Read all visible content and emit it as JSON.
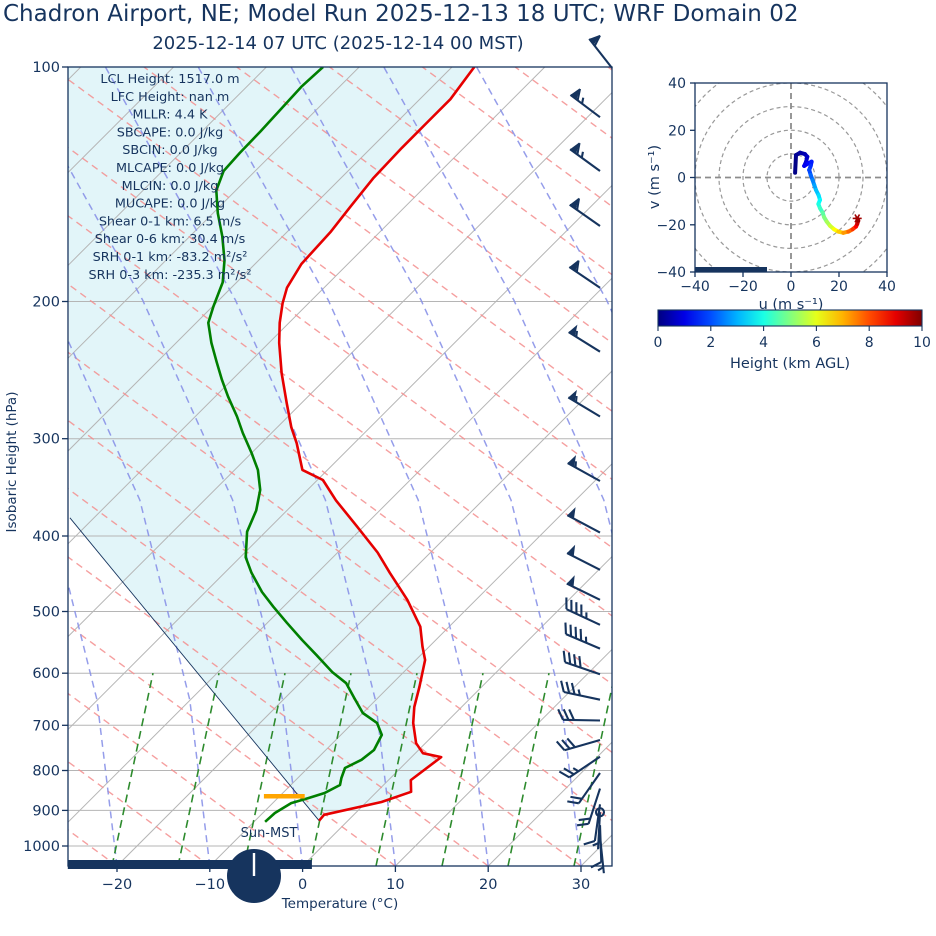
{
  "title": "Chadron Airport, NE; Model Run 2025-12-13 18 UTC; WRF Domain 02",
  "subtitle": "2025-12-14 07 UTC  (2025-12-14 00 MST)",
  "header_barb": {
    "dir": 322,
    "kt": 60
  },
  "colors": {
    "navy": "#16345e",
    "temperature": "#e60000",
    "dewpoint": "#007f00",
    "shade_fill": "#e2f5f9",
    "isotherm": "#b5b5b5",
    "dry_adiabat": "#f48f8f",
    "moist_adiabat": "#8a93e8",
    "mixing_ratio": "#2e8b2e",
    "lcl": "#ffa500",
    "ring_gray": "#999999",
    "marker_red": "#a00000"
  },
  "chart_data": [
    {
      "type": "line",
      "name": "skewt",
      "xlabel": "Temperature (°C)",
      "ylabel": "Isobaric Height (hPa)",
      "x_ticks": [
        -20,
        -10,
        0,
        10,
        20,
        30
      ],
      "p_ticks": [
        100,
        200,
        300,
        400,
        500,
        600,
        700,
        800,
        900,
        1000
      ],
      "xlim": [
        -25.3,
        33.3
      ],
      "plim": [
        100,
        1061
      ],
      "stats_lines": [
        "LCL Height: 1517.0 m",
        "LFC Height: nan m",
        "MLLR: 4.4 K",
        "SBCAPE: 0.0 J/kg",
        "SBCIN: 0.0 J/kg",
        "MLCAPE: 0.0 J/kg",
        "MLCIN: 0.0 J/kg",
        "MUCAPE: 0.0 J/kg",
        "Shear 0-1 km: 6.5 m/s",
        "Shear 0-6 km: 30.4 m/s",
        "SRH 0-1 km: -83.2 m²/s²",
        "SRH 0-3 km: -235.3 m²/s²"
      ],
      "temperature_profile": [
        [
          100,
          -67.6
        ],
        [
          110,
          -66.7
        ],
        [
          118,
          -66.7
        ],
        [
          127,
          -66.7
        ],
        [
          139,
          -66.5
        ],
        [
          151,
          -65.9
        ],
        [
          163,
          -65.3
        ],
        [
          179,
          -65.0
        ],
        [
          192,
          -64.0
        ],
        [
          201,
          -62.8
        ],
        [
          213,
          -61.0
        ],
        [
          226,
          -58.9
        ],
        [
          247,
          -55.4
        ],
        [
          270,
          -51.6
        ],
        [
          290,
          -48.5
        ],
        [
          304,
          -46.2
        ],
        [
          329,
          -42.7
        ],
        [
          339,
          -39.4
        ],
        [
          360,
          -35.8
        ],
        [
          389,
          -30.7
        ],
        [
          420,
          -25.7
        ],
        [
          446,
          -22.2
        ],
        [
          483,
          -17.4
        ],
        [
          523,
          -13.1
        ],
        [
          555,
          -10.7
        ],
        [
          577,
          -9.0
        ],
        [
          625,
          -6.7
        ],
        [
          663,
          -5.1
        ],
        [
          695,
          -3.5
        ],
        [
          738,
          -1.0
        ],
        [
          760,
          0.8
        ],
        [
          769,
          3.2
        ],
        [
          823,
          2.4
        ],
        [
          852,
          3.7
        ],
        [
          878,
          1.6
        ],
        [
          912,
          -3.2
        ],
        [
          928,
          -3.1
        ]
      ],
      "dewpoint_profile": [
        [
          100,
          -83.9
        ],
        [
          106,
          -84.1
        ],
        [
          113,
          -83.9
        ],
        [
          121,
          -83.7
        ],
        [
          129,
          -83.6
        ],
        [
          136,
          -83.4
        ],
        [
          144,
          -82.1
        ],
        [
          154,
          -79.5
        ],
        [
          165,
          -76.5
        ],
        [
          177,
          -73.7
        ],
        [
          189,
          -71.5
        ],
        [
          203,
          -69.9
        ],
        [
          213,
          -68.7
        ],
        [
          226,
          -66.2
        ],
        [
          239,
          -63.6
        ],
        [
          252,
          -61.1
        ],
        [
          265,
          -58.6
        ],
        [
          281,
          -55.5
        ],
        [
          295,
          -53.1
        ],
        [
          313,
          -50.0
        ],
        [
          329,
          -47.5
        ],
        [
          349,
          -45.1
        ],
        [
          371,
          -43.3
        ],
        [
          395,
          -42.0
        ],
        [
          426,
          -39.4
        ],
        [
          446,
          -37.1
        ],
        [
          472,
          -33.9
        ],
        [
          493,
          -31.1
        ],
        [
          517,
          -27.9
        ],
        [
          544,
          -24.4
        ],
        [
          569,
          -21.2
        ],
        [
          598,
          -17.7
        ],
        [
          618,
          -15.0
        ],
        [
          646,
          -12.5
        ],
        [
          675,
          -10.0
        ],
        [
          695,
          -7.4
        ],
        [
          720,
          -5.6
        ],
        [
          753,
          -4.8
        ],
        [
          775,
          -5.1
        ],
        [
          794,
          -6.0
        ],
        [
          818,
          -5.3
        ],
        [
          835,
          -4.7
        ],
        [
          855,
          -5.5
        ],
        [
          868,
          -6.7
        ],
        [
          881,
          -8.0
        ],
        [
          907,
          -8.7
        ],
        [
          931,
          -8.8
        ]
      ],
      "parcel_path": [
        [
          928,
          -3.1
        ],
        [
          379,
          -62.6
        ]
      ],
      "lcl_marker": {
        "p": 863,
        "t_from": -11.7,
        "t_to": -7.3
      },
      "surface_bar": {
        "t_from": -25.3,
        "t_to": 1.0
      },
      "sun_clock": {
        "label": "Sun-MST",
        "hand_angle_deg": 0
      },
      "wind_barbs": [
        {
          "p": 116,
          "dir": 307,
          "kt": 65
        },
        {
          "p": 136,
          "dir": 306,
          "kt": 65
        },
        {
          "p": 160,
          "dir": 305,
          "kt": 60
        },
        {
          "p": 192,
          "dir": 304,
          "kt": 60
        },
        {
          "p": 232,
          "dir": 302,
          "kt": 55
        },
        {
          "p": 281,
          "dir": 301,
          "kt": 55
        },
        {
          "p": 340,
          "dir": 299,
          "kt": 55
        },
        {
          "p": 396,
          "dir": 298,
          "kt": 50
        },
        {
          "p": 442,
          "dir": 297,
          "kt": 50
        },
        {
          "p": 483,
          "dir": 296,
          "kt": 50
        },
        {
          "p": 520,
          "dir": 295,
          "kt": 45
        },
        {
          "p": 558,
          "dir": 293,
          "kt": 45
        },
        {
          "p": 602,
          "dir": 289,
          "kt": 40
        },
        {
          "p": 649,
          "dir": 282,
          "kt": 35
        },
        {
          "p": 690,
          "dir": 271,
          "kt": 32
        },
        {
          "p": 731,
          "dir": 254,
          "kt": 28
        },
        {
          "p": 768,
          "dir": 236,
          "kt": 25
        },
        {
          "p": 806,
          "dir": 215,
          "kt": 22
        },
        {
          "p": 844,
          "dir": 198,
          "kt": 18
        },
        {
          "p": 884,
          "dir": 188,
          "kt": 12
        },
        {
          "p": 905,
          "dir": 183,
          "kt": 3,
          "calm": true
        },
        {
          "p": 940,
          "dir": 178,
          "kt": 8
        },
        {
          "p": 972,
          "dir": 174,
          "kt": 6
        }
      ]
    },
    {
      "type": "line",
      "name": "hodograph",
      "xlabel": "u (m s⁻¹)",
      "ylabel": "v (m s⁻¹)",
      "u_ticks": [
        -40,
        -20,
        0,
        20,
        40
      ],
      "v_ticks": [
        -40,
        -20,
        0,
        20,
        40
      ],
      "ulim": [
        -40,
        40
      ],
      "vlim": [
        -40,
        40
      ],
      "rings": [
        10,
        20,
        30,
        40,
        50
      ],
      "trace": [
        {
          "u": 1.7,
          "v": 2.0,
          "h": 0
        },
        {
          "u": 2.1,
          "v": 9.5,
          "h": 0.15
        },
        {
          "u": 3.8,
          "v": 10.5,
          "h": 0.3
        },
        {
          "u": 5.8,
          "v": 9.9,
          "h": 0.45
        },
        {
          "u": 6.8,
          "v": 8.8,
          "h": 0.6
        },
        {
          "u": 6.3,
          "v": 6.7,
          "h": 0.8
        },
        {
          "u": 5.5,
          "v": 4.9,
          "h": 1.0
        },
        {
          "u": 7.2,
          "v": 6.0,
          "h": 1.2
        },
        {
          "u": 8.6,
          "v": 6.7,
          "h": 1.4
        },
        {
          "u": 8.2,
          "v": 4.9,
          "h": 1.6
        },
        {
          "u": 7.6,
          "v": 3.2,
          "h": 1.8
        },
        {
          "u": 8.2,
          "v": 1.1,
          "h": 2.1
        },
        {
          "u": 9.0,
          "v": -1.1,
          "h": 2.4
        },
        {
          "u": 9.7,
          "v": -3.2,
          "h": 2.7
        },
        {
          "u": 10.4,
          "v": -5.3,
          "h": 3.0
        },
        {
          "u": 11.5,
          "v": -7.5,
          "h": 3.3
        },
        {
          "u": 12.1,
          "v": -9.5,
          "h": 3.6
        },
        {
          "u": 11.4,
          "v": -11.2,
          "h": 3.9
        },
        {
          "u": 12.1,
          "v": -13.0,
          "h": 4.2
        },
        {
          "u": 13.2,
          "v": -14.9,
          "h": 4.5
        },
        {
          "u": 13.8,
          "v": -16.8,
          "h": 4.8
        },
        {
          "u": 14.9,
          "v": -18.7,
          "h": 5.2
        },
        {
          "u": 16.3,
          "v": -20.5,
          "h": 5.6
        },
        {
          "u": 17.9,
          "v": -21.9,
          "h": 6.0
        },
        {
          "u": 19.7,
          "v": -22.9,
          "h": 6.5
        },
        {
          "u": 21.8,
          "v": -23.4,
          "h": 7.0
        },
        {
          "u": 23.9,
          "v": -22.9,
          "h": 7.5
        },
        {
          "u": 25.7,
          "v": -21.9,
          "h": 8.0
        },
        {
          "u": 27.1,
          "v": -20.8,
          "h": 8.5
        },
        {
          "u": 27.6,
          "v": -19.7,
          "h": 9.0
        },
        {
          "u": 28.0,
          "v": -18.3,
          "h": 9.5
        },
        {
          "u": 27.6,
          "v": -17.3,
          "h": 10
        }
      ],
      "end_marker": {
        "u": 27.6,
        "v": -17.3
      },
      "storm_bar": {
        "v": -40,
        "u_from": -40,
        "u_to": -10
      }
    },
    {
      "type": "colorbar",
      "name": "height-colorbar",
      "label": "Height (km AGL)",
      "ticks": [
        0,
        2,
        4,
        6,
        8,
        10
      ],
      "range": [
        0,
        10
      ],
      "colormap": "jet"
    }
  ]
}
